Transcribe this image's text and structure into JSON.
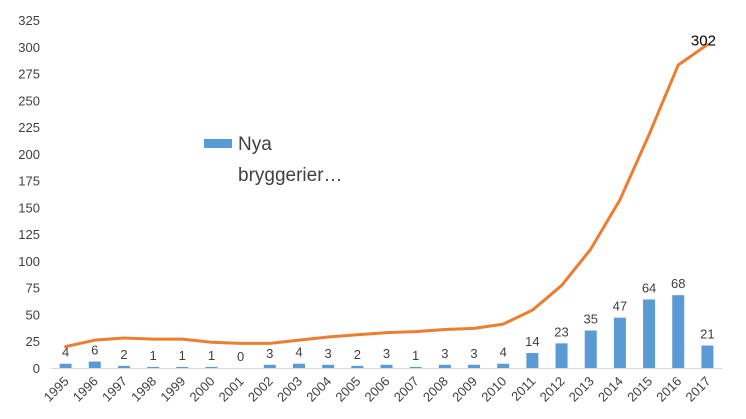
{
  "chart_data": {
    "type": "bar",
    "categories": [
      "1995",
      "1996",
      "1997",
      "1998",
      "1999",
      "2000",
      "2001",
      "2002",
      "2003",
      "2004",
      "2005",
      "2006",
      "2007",
      "2008",
      "2009",
      "2010",
      "2011",
      "2012",
      "2013",
      "2014",
      "2015",
      "2016",
      "2017"
    ],
    "series": [
      {
        "name": "Nya bryggerier…",
        "type": "bar",
        "color": "#5B9BD5",
        "values": [
          4,
          6,
          2,
          1,
          1,
          1,
          0,
          3,
          4,
          3,
          2,
          3,
          1,
          3,
          3,
          4,
          14,
          23,
          35,
          47,
          64,
          68,
          21
        ],
        "data_labels": [
          "4",
          "6",
          "2",
          "1",
          "1",
          "1",
          "0",
          "3",
          "4",
          "3",
          "2",
          "3",
          "1",
          "3",
          "3",
          "4",
          "14",
          "23",
          "35",
          "47",
          "64",
          "68",
          "21"
        ]
      },
      {
        "type": "line",
        "color": "#ED7D31",
        "values": [
          20,
          26,
          28,
          27,
          27,
          24,
          23,
          23,
          26,
          29,
          31,
          33,
          34,
          36,
          37,
          41,
          54,
          77,
          111,
          157,
          218,
          283,
          302
        ],
        "end_label": "302"
      }
    ],
    "yticks": [
      "0",
      "25",
      "50",
      "75",
      "100",
      "125",
      "150",
      "175",
      "200",
      "225",
      "250",
      "275",
      "300",
      "325"
    ],
    "ylim": [
      0,
      325
    ],
    "grid": false,
    "legend": {
      "position": "middle-left",
      "label_line1": "Nya",
      "label_line2": "bryggerier…"
    }
  }
}
